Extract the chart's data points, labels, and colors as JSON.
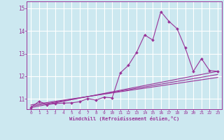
{
  "xlabel": "Windchill (Refroidissement éolien,°C)",
  "background_color": "#cce8f0",
  "grid_color": "#ffffff",
  "line_color": "#993399",
  "xlim": [
    -0.5,
    23.5
  ],
  "ylim": [
    10.55,
    15.3
  ],
  "xticks": [
    0,
    1,
    2,
    3,
    4,
    5,
    6,
    7,
    8,
    9,
    10,
    11,
    12,
    13,
    14,
    15,
    16,
    17,
    18,
    19,
    20,
    21,
    22,
    23
  ],
  "yticks": [
    11,
    12,
    13,
    14,
    15
  ],
  "main_x": [
    0,
    1,
    2,
    3,
    4,
    5,
    6,
    7,
    8,
    9,
    10,
    11,
    12,
    13,
    14,
    15,
    16,
    17,
    18,
    19,
    20,
    21,
    22,
    23
  ],
  "main_y": [
    10.62,
    10.9,
    10.75,
    10.8,
    10.82,
    10.83,
    10.88,
    11.02,
    10.95,
    11.08,
    11.05,
    12.15,
    12.48,
    13.05,
    13.82,
    13.6,
    14.85,
    14.42,
    14.1,
    13.25,
    12.22,
    12.78,
    12.25,
    12.22
  ],
  "line1_x": [
    0,
    23
  ],
  "line1_y": [
    10.62,
    12.22
  ],
  "line2_x": [
    0,
    23
  ],
  "line2_y": [
    10.68,
    12.08
  ],
  "line3_x": [
    0,
    23
  ],
  "line3_y": [
    10.74,
    11.95
  ]
}
